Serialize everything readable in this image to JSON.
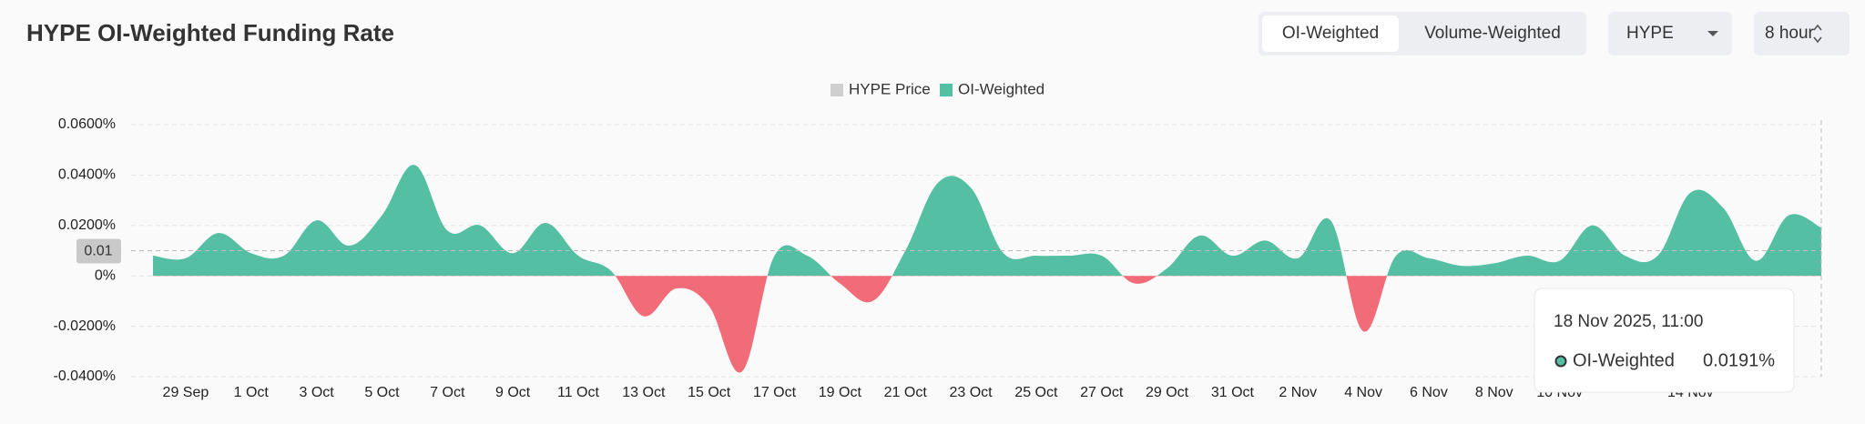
{
  "header": {
    "title": "HYPE OI-Weighted Funding Rate"
  },
  "controls": {
    "tabs": [
      "OI-Weighted",
      "Volume-Weighted"
    ],
    "asset": "HYPE",
    "interval": "8 hour"
  },
  "chart_data": {
    "type": "area",
    "hidden_series": [
      {
        "name": "HYPE Price",
        "color": "#cfcfcf"
      }
    ],
    "series": [
      {
        "name": "OI-Weighted",
        "color": "#55bfa4",
        "negative_color": "#f26b78",
        "values": [
          0.008,
          0.007,
          0.017,
          0.009,
          0.008,
          0.022,
          0.012,
          0.024,
          0.044,
          0.018,
          0.02,
          0.009,
          0.021,
          0.008,
          0.002,
          -0.016,
          -0.005,
          -0.012,
          -0.038,
          0.008,
          0.008,
          -0.003,
          -0.01,
          0.01,
          0.037,
          0.035,
          0.009,
          0.008,
          0.008,
          0.008,
          -0.003,
          0.003,
          0.016,
          0.008,
          0.014,
          0.007,
          0.022,
          -0.022,
          0.008,
          0.007,
          0.004,
          0.005,
          0.008,
          0.006,
          0.02,
          0.008,
          0.008,
          0.033,
          0.027,
          0.006,
          0.024,
          0.0191
        ]
      }
    ],
    "categories": [
      null,
      "29 Sep",
      null,
      "1 Oct",
      null,
      "3 Oct",
      null,
      "5 Oct",
      null,
      "7 Oct",
      null,
      "9 Oct",
      null,
      "11 Oct",
      null,
      "13 Oct",
      null,
      "15 Oct",
      null,
      "17 Oct",
      null,
      "19 Oct",
      null,
      "21 Oct",
      null,
      "23 Oct",
      null,
      "25 Oct",
      null,
      "27 Oct",
      null,
      "29 Oct",
      null,
      "31 Oct",
      null,
      "2 Nov",
      null,
      "4 Nov",
      null,
      "6 Nov",
      null,
      "8 Nov",
      null,
      "10 Nov",
      null,
      null,
      null,
      "14 Nov",
      null,
      null,
      null,
      null
    ],
    "ylim": [
      -0.04,
      0.06
    ],
    "yticks": [
      {
        "value": 0.06,
        "label": "0.0600%"
      },
      {
        "value": 0.04,
        "label": "0.0400%"
      },
      {
        "value": 0.02,
        "label": "0.0200%"
      },
      {
        "value": 0,
        "label": "0%"
      },
      {
        "value": -0.02,
        "label": "-0.0200%"
      },
      {
        "value": -0.04,
        "label": "-0.0400%"
      }
    ],
    "grid": true,
    "crosshair": 0.01,
    "tooltip": {
      "title": "18 Nov 2025, 11:00",
      "value": {
        "value": 0.0191,
        "label": "0.0191%"
      }
    }
  }
}
